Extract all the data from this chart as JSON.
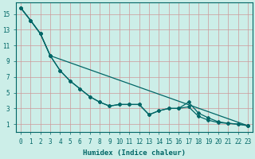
{
  "xlabel": "Humidex (Indice chaleur)",
  "background_color": "#cceee8",
  "grid_color": "#aacccc",
  "line_color": "#006666",
  "xlim": [
    -0.5,
    23.5
  ],
  "ylim": [
    0,
    16.5
  ],
  "xticks": [
    0,
    1,
    2,
    3,
    4,
    5,
    6,
    7,
    8,
    9,
    10,
    11,
    12,
    13,
    14,
    15,
    16,
    17,
    18,
    19,
    20,
    21,
    22,
    23
  ],
  "yticks": [
    1,
    3,
    5,
    7,
    9,
    11,
    13,
    15
  ],
  "curve1_x": [
    0,
    1,
    2,
    3,
    4,
    5,
    6,
    7,
    8,
    9,
    10,
    11,
    12,
    13,
    14,
    15,
    16,
    17,
    18,
    19,
    20,
    21,
    22,
    23
  ],
  "curve1_y": [
    15.8,
    14.2,
    12.5,
    9.7,
    7.8,
    6.5,
    5.5,
    4.5,
    3.8,
    3.3,
    3.5,
    3.5,
    3.5,
    2.2,
    2.7,
    3.0,
    3.0,
    3.2,
    2.0,
    1.5,
    1.2,
    1.1,
    1.0,
    0.8
  ],
  "curve2_x": [
    0,
    1,
    2,
    3,
    4,
    5,
    6,
    7,
    8,
    9,
    10,
    11,
    12,
    13,
    14,
    15,
    16,
    17,
    18,
    19,
    20,
    21,
    22,
    23
  ],
  "curve2_y": [
    15.8,
    14.2,
    12.5,
    9.7,
    7.8,
    6.5,
    5.5,
    4.5,
    3.8,
    3.3,
    3.5,
    3.5,
    3.5,
    2.2,
    2.7,
    3.0,
    3.0,
    3.8,
    2.4,
    1.8,
    1.3,
    1.1,
    1.0,
    0.8
  ],
  "curve3_x": [
    0,
    1,
    2,
    3,
    23
  ],
  "curve3_y": [
    15.8,
    14.2,
    12.5,
    9.7,
    0.8
  ]
}
